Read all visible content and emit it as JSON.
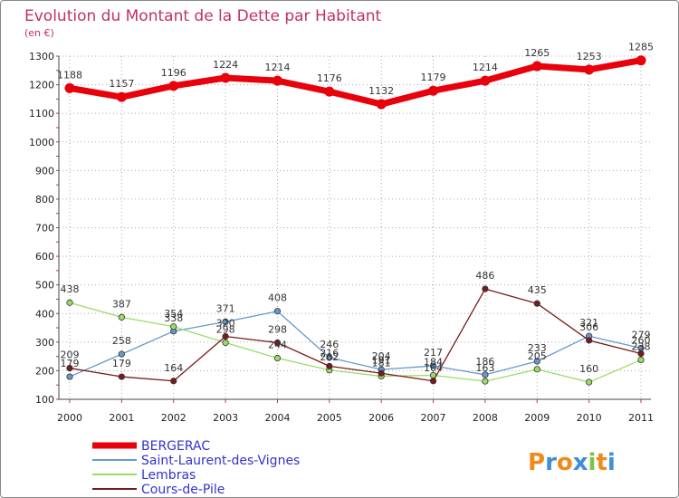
{
  "chart_data": {
    "type": "line",
    "title": "Evolution du Montant de la Dette par Habitant",
    "subtitle": "(en €)",
    "x": [
      "2000",
      "2001",
      "2002",
      "2003",
      "2004",
      "2005",
      "2006",
      "2007",
      "2008",
      "2009",
      "2010",
      "2011"
    ],
    "y_ticks": [
      100,
      200,
      300,
      400,
      500,
      600,
      700,
      800,
      900,
      1000,
      1100,
      1200,
      1300
    ],
    "ylim": [
      100,
      1300
    ],
    "grid": true,
    "series": [
      {
        "name": "BERGERAC",
        "color": "#e8000b",
        "values": [
          1188,
          1157,
          1196,
          1224,
          1214,
          1176,
          1132,
          1179,
          1214,
          1265,
          1253,
          1285
        ]
      },
      {
        "name": "Saint-Laurent-des-Vignes",
        "color": "#6699cc",
        "values": [
          179,
          258,
          338,
          371,
          408,
          246,
          204,
          217,
          186,
          233,
          321,
          279
        ]
      },
      {
        "name": "Lembras",
        "color": "#99dd66",
        "values": [
          438,
          387,
          354,
          298,
          244,
          202,
          181,
          184,
          163,
          205,
          160,
          238
        ]
      },
      {
        "name": "Cours-de-Pile",
        "color": "#7a1a1a",
        "values": [
          209,
          179,
          164,
          320,
          298,
          216,
          191,
          164,
          486,
          435,
          306,
          260
        ]
      }
    ],
    "legend_position": "bottom-left"
  },
  "logo": {
    "text": "Proxiti"
  }
}
